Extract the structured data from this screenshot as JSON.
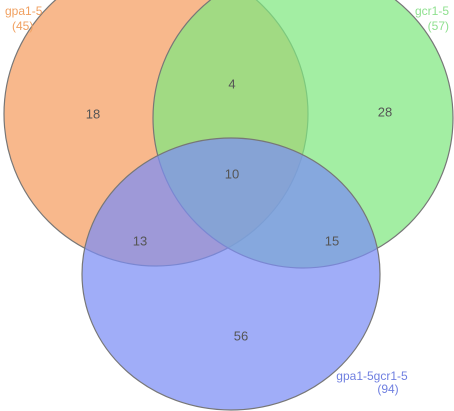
{
  "chart_data": {
    "type": "venn",
    "sets": [
      {
        "name": "gpa1-5",
        "count": "(45)",
        "color": "#f59d5f",
        "label_color": "#f0a060"
      },
      {
        "name": "gcr1-5",
        "count": "(57)",
        "color": "#7fe87f",
        "label_color": "#8fe08f"
      },
      {
        "name": "gpa1-5gcr1-5",
        "count": "(94)",
        "color": "#7b8ef5",
        "label_color": "#6f7fe0"
      }
    ],
    "regions": [
      {
        "sets": "gpa1-5",
        "value": 18
      },
      {
        "sets": "gpa1-5 gcr1-5",
        "value": 4
      },
      {
        "sets": "gcr1-5",
        "value": 28
      },
      {
        "sets": "gpa1-5 gcr1-5 gpa1-5gcr1-5",
        "value": 10
      },
      {
        "sets": "gpa1-5 gpa1-5gcr1-5",
        "value": 13
      },
      {
        "sets": "gcr1-5 gpa1-5gcr1-5",
        "value": 15
      },
      {
        "sets": "gpa1-5gcr1-5",
        "value": 56
      }
    ]
  }
}
